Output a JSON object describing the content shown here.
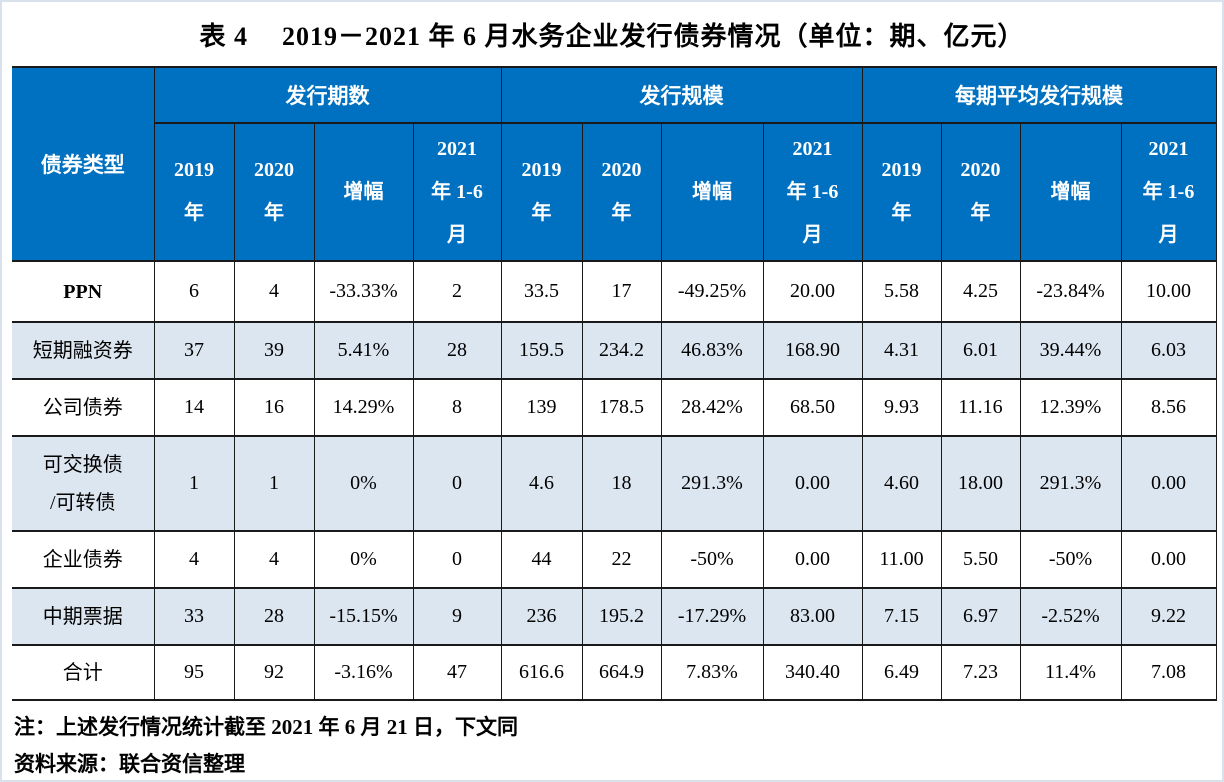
{
  "title": {
    "prefix": "表 4",
    "text": "2019－2021 年 6 月水务企业发行债券情况（单位：期、亿元）"
  },
  "table": {
    "corner_header": "债券类型",
    "groups": [
      {
        "label": "发行期数"
      },
      {
        "label": "发行规模"
      },
      {
        "label": "每期平均发行规模"
      }
    ],
    "sub_headers": [
      "2019\n年",
      "2020\n年",
      "增幅",
      "2021\n年 1-6\n月"
    ],
    "rows": [
      {
        "label": "PPN",
        "shaded": false,
        "total": false,
        "values": [
          "6",
          "4",
          "-33.33%",
          "2",
          "33.5",
          "17",
          "-49.25%",
          "20.00",
          "5.58",
          "4.25",
          "-23.84%",
          "10.00"
        ]
      },
      {
        "label": "短期融资券",
        "shaded": true,
        "total": false,
        "values": [
          "37",
          "39",
          "5.41%",
          "28",
          "159.5",
          "234.2",
          "46.83%",
          "168.90",
          "4.31",
          "6.01",
          "39.44%",
          "6.03"
        ]
      },
      {
        "label": "公司债券",
        "shaded": false,
        "total": false,
        "values": [
          "14",
          "16",
          "14.29%",
          "8",
          "139",
          "178.5",
          "28.42%",
          "68.50",
          "9.93",
          "11.16",
          "12.39%",
          "8.56"
        ]
      },
      {
        "label": "可交换债\n/可转债",
        "shaded": true,
        "total": false,
        "values": [
          "1",
          "1",
          "0%",
          "0",
          "4.6",
          "18",
          "291.3%",
          "0.00",
          "4.60",
          "18.00",
          "291.3%",
          "0.00"
        ]
      },
      {
        "label": "企业债券",
        "shaded": false,
        "total": false,
        "values": [
          "4",
          "4",
          "0%",
          "0",
          "44",
          "22",
          "-50%",
          "0.00",
          "11.00",
          "5.50",
          "-50%",
          "0.00"
        ]
      },
      {
        "label": "中期票据",
        "shaded": true,
        "total": false,
        "values": [
          "33",
          "28",
          "-15.15%",
          "9",
          "236",
          "195.2",
          "-17.29%",
          "83.00",
          "7.15",
          "6.97",
          "-2.52%",
          "9.22"
        ]
      },
      {
        "label": "合计",
        "shaded": false,
        "total": true,
        "values": [
          "95",
          "92",
          "-3.16%",
          "47",
          "616.6",
          "664.9",
          "7.83%",
          "340.40",
          "6.49",
          "7.23",
          "11.4%",
          "7.08"
        ]
      }
    ]
  },
  "notes": {
    "note1": "注：上述发行情况统计截至 2021 年 6 月 21 日，下文同",
    "source": "资料来源：联合资信整理"
  },
  "colors": {
    "header_bg": "#0070C0",
    "header_text": "#FFFFFF",
    "shaded_row": "#DCE6F1",
    "border": "#1A1A1A"
  }
}
